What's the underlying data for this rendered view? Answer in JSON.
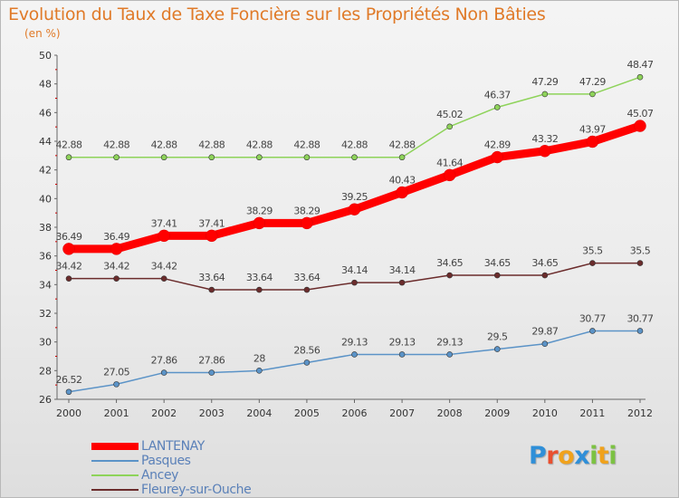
{
  "header": {
    "title": "Evolution du Taux de Taxe Foncière sur les Propriétés Non Bâties",
    "subtitle": "(en %)"
  },
  "chart_data": {
    "type": "line",
    "title": "Evolution du Taux de Taxe Foncière sur les Propriétés Non Bâties",
    "subtitle": "(en %)",
    "xlabel": "",
    "ylabel": "",
    "x": [
      "2000",
      "2001",
      "2002",
      "2003",
      "2004",
      "2005",
      "2006",
      "2007",
      "2008",
      "2009",
      "2010",
      "2011",
      "2012"
    ],
    "ylim": [
      26,
      50
    ],
    "yticks": [
      "26",
      "28",
      "30",
      "32",
      "34",
      "36",
      "38",
      "40",
      "42",
      "44",
      "46",
      "48",
      "50"
    ],
    "grid": false,
    "legend_position": "bottom-left",
    "series": [
      {
        "name": "LANTENAY",
        "color": "#ff0000",
        "highlight": true,
        "values": [
          36.49,
          36.49,
          37.41,
          37.41,
          38.29,
          38.29,
          39.25,
          40.43,
          41.64,
          42.89,
          43.32,
          43.97,
          45.07
        ],
        "labels": [
          "36.49",
          "36.49",
          "37.41",
          "37.41",
          "38.29",
          "38.29",
          "39.25",
          "40.43",
          "41.64",
          "42.89",
          "43.32",
          "43.97",
          "45.07"
        ]
      },
      {
        "name": "Pasques",
        "color": "#5b93c7",
        "highlight": false,
        "values": [
          26.52,
          27.05,
          27.86,
          27.86,
          28,
          28.56,
          29.13,
          29.13,
          29.13,
          29.5,
          29.87,
          30.77,
          30.77
        ],
        "labels": [
          "26.52",
          "27.05",
          "27.86",
          "27.86",
          "28",
          "28.56",
          "29.13",
          "29.13",
          "29.13",
          "29.5",
          "29.87",
          "30.77",
          "30.77"
        ]
      },
      {
        "name": "Ancey",
        "color": "#8ed35a",
        "highlight": false,
        "values": [
          42.88,
          42.88,
          42.88,
          42.88,
          42.88,
          42.88,
          42.88,
          42.88,
          45.02,
          46.37,
          47.29,
          47.29,
          48.47
        ],
        "labels": [
          "42.88",
          "42.88",
          "42.88",
          "42.88",
          "42.88",
          "42.88",
          "42.88",
          "42.88",
          "45.02",
          "46.37",
          "47.29",
          "47.29",
          "48.47"
        ]
      },
      {
        "name": "Fleurey-sur-Ouche",
        "color": "#6b2c2c",
        "highlight": false,
        "values": [
          34.42,
          34.42,
          34.42,
          33.64,
          33.64,
          33.64,
          34.14,
          34.14,
          34.65,
          34.65,
          34.65,
          35.5,
          35.5
        ],
        "labels": [
          "34.42",
          "34.42",
          "34.42",
          "33.64",
          "33.64",
          "33.64",
          "34.14",
          "34.14",
          "34.65",
          "34.65",
          "34.65",
          "35.5",
          "35.5"
        ]
      }
    ]
  },
  "logo": {
    "letters": [
      {
        "ch": "P",
        "color": "#2f8fd8"
      },
      {
        "ch": "r",
        "color": "#e94f2f"
      },
      {
        "ch": "o",
        "color": "#f0a21c"
      },
      {
        "ch": "x",
        "color": "#2f8fd8"
      },
      {
        "ch": "i",
        "color": "#7cc242"
      },
      {
        "ch": "t",
        "color": "#f0a21c"
      },
      {
        "ch": "i",
        "color": "#7cc242"
      }
    ]
  }
}
